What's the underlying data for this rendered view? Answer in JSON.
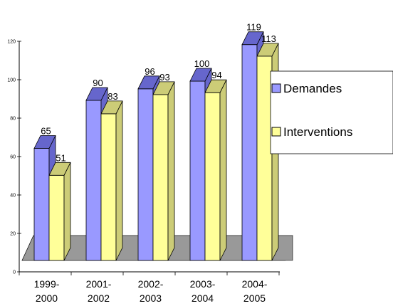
{
  "chart_data": {
    "type": "bar",
    "categories": [
      [
        "1999-",
        "2000"
      ],
      [
        "2001-",
        "2002"
      ],
      [
        "2002-",
        "2003"
      ],
      [
        "2003-",
        "2004"
      ],
      [
        "2004-",
        "2005"
      ]
    ],
    "series": [
      {
        "name": "Demandes",
        "values": [
          65,
          90,
          96,
          100,
          119
        ],
        "color": "#9999ff",
        "top_color": "#6666cc"
      },
      {
        "name": "Interventions",
        "values": [
          51,
          83,
          93,
          94,
          113
        ],
        "color": "#ffff99",
        "top_color": "#cccc77"
      }
    ],
    "yticks": [
      0,
      20,
      40,
      60,
      80,
      100,
      120
    ],
    "ylim": [
      0,
      120
    ],
    "floor_color": "#999999",
    "legend_position": "right",
    "title": "",
    "xlabel": "",
    "ylabel": ""
  }
}
